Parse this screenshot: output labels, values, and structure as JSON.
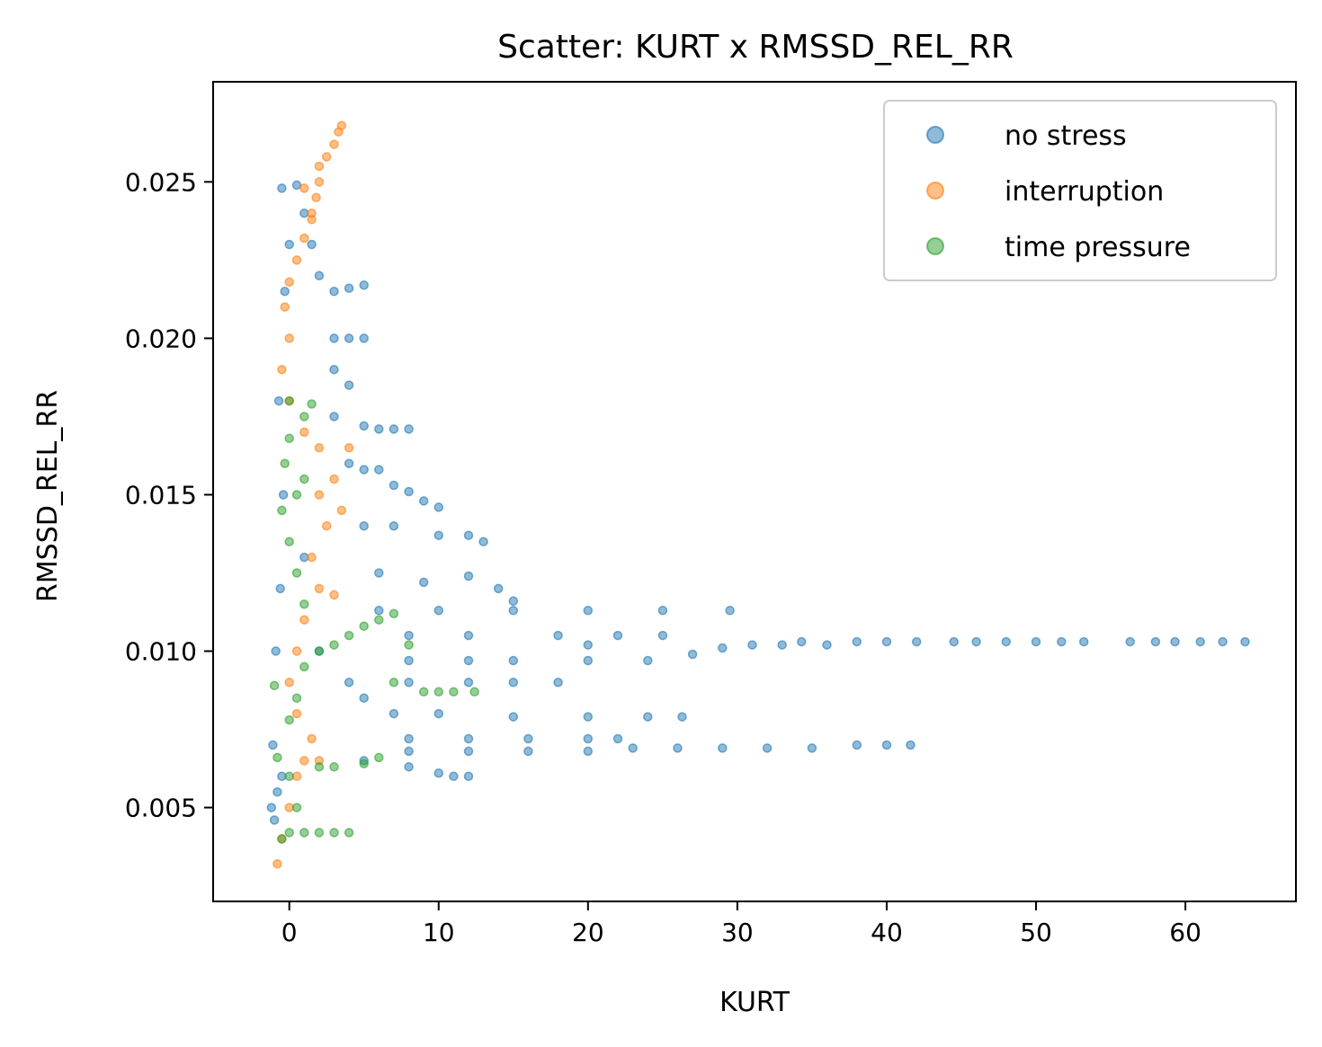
{
  "chart_data": {
    "type": "scatter",
    "title": "Scatter: KURT x RMSSD_REL_RR",
    "xlabel": "KURT",
    "ylabel": "RMSSD_REL_RR",
    "xlim": [
      -5.1,
      67.4
    ],
    "ylim": [
      0.002,
      0.0282
    ],
    "xticks": [
      0,
      10,
      20,
      30,
      40,
      50,
      60
    ],
    "xtick_labels": [
      "0",
      "10",
      "20",
      "30",
      "40",
      "50",
      "60"
    ],
    "yticks": [
      0.005,
      0.01,
      0.015,
      0.02,
      0.025
    ],
    "ytick_labels": [
      "0.005",
      "0.010",
      "0.015",
      "0.020",
      "0.025"
    ],
    "grid": false,
    "legend_position": "top-right",
    "series": [
      {
        "name": "no stress",
        "color": "#1f77b4",
        "points": [
          [
            -1.2,
            0.005
          ],
          [
            -1.0,
            0.0046
          ],
          [
            -0.8,
            0.0055
          ],
          [
            -0.5,
            0.006
          ],
          [
            -1.1,
            0.007
          ],
          [
            -0.9,
            0.01
          ],
          [
            -0.6,
            0.012
          ],
          [
            -0.4,
            0.015
          ],
          [
            -0.7,
            0.018
          ],
          [
            -0.3,
            0.0215
          ],
          [
            0.0,
            0.023
          ],
          [
            -0.5,
            0.0248
          ],
          [
            0.5,
            0.0249
          ],
          [
            1.0,
            0.024
          ],
          [
            1.5,
            0.023
          ],
          [
            2.0,
            0.022
          ],
          [
            3.0,
            0.0215
          ],
          [
            4.0,
            0.0216
          ],
          [
            5.0,
            0.0217
          ],
          [
            3.0,
            0.02
          ],
          [
            4.0,
            0.02
          ],
          [
            5.0,
            0.02
          ],
          [
            3.0,
            0.019
          ],
          [
            4.0,
            0.0185
          ],
          [
            3.0,
            0.0175
          ],
          [
            5.0,
            0.0172
          ],
          [
            6.0,
            0.0171
          ],
          [
            7.0,
            0.0171
          ],
          [
            8.0,
            0.0171
          ],
          [
            4.0,
            0.016
          ],
          [
            5.0,
            0.0158
          ],
          [
            6.0,
            0.0158
          ],
          [
            7.0,
            0.0153
          ],
          [
            8.0,
            0.0151
          ],
          [
            9.0,
            0.0148
          ],
          [
            10.0,
            0.0146
          ],
          [
            5.0,
            0.014
          ],
          [
            7.0,
            0.014
          ],
          [
            10.0,
            0.0137
          ],
          [
            12.0,
            0.0137
          ],
          [
            13.0,
            0.0135
          ],
          [
            6.0,
            0.0125
          ],
          [
            9.0,
            0.0122
          ],
          [
            12.0,
            0.0124
          ],
          [
            14.0,
            0.012
          ],
          [
            15.0,
            0.0116
          ],
          [
            6.0,
            0.0113
          ],
          [
            10.0,
            0.0113
          ],
          [
            15.0,
            0.0113
          ],
          [
            20.0,
            0.0113
          ],
          [
            25.0,
            0.0113
          ],
          [
            29.5,
            0.0113
          ],
          [
            8.0,
            0.0105
          ],
          [
            12.0,
            0.0105
          ],
          [
            18.0,
            0.0105
          ],
          [
            22.0,
            0.0105
          ],
          [
            25.0,
            0.0105
          ],
          [
            20.0,
            0.0102
          ],
          [
            8.0,
            0.0097
          ],
          [
            12.0,
            0.0097
          ],
          [
            15.0,
            0.0097
          ],
          [
            20.0,
            0.0097
          ],
          [
            24.0,
            0.0097
          ],
          [
            27.0,
            0.0099
          ],
          [
            29.0,
            0.0101
          ],
          [
            31.0,
            0.0102
          ],
          [
            33.0,
            0.0102
          ],
          [
            34.3,
            0.0103
          ],
          [
            36.0,
            0.0102
          ],
          [
            38.0,
            0.0103
          ],
          [
            40.0,
            0.0103
          ],
          [
            42.0,
            0.0103
          ],
          [
            44.5,
            0.0103
          ],
          [
            46.0,
            0.0103
          ],
          [
            48.0,
            0.0103
          ],
          [
            50.0,
            0.0103
          ],
          [
            51.7,
            0.0103
          ],
          [
            53.2,
            0.0103
          ],
          [
            56.3,
            0.0103
          ],
          [
            58.0,
            0.0103
          ],
          [
            59.3,
            0.0103
          ],
          [
            61.0,
            0.0103
          ],
          [
            62.5,
            0.0103
          ],
          [
            64.0,
            0.0103
          ],
          [
            8.0,
            0.009
          ],
          [
            12.0,
            0.009
          ],
          [
            15.0,
            0.009
          ],
          [
            18.0,
            0.009
          ],
          [
            7.0,
            0.008
          ],
          [
            10.0,
            0.008
          ],
          [
            15.0,
            0.0079
          ],
          [
            20.0,
            0.0079
          ],
          [
            24.0,
            0.0079
          ],
          [
            26.3,
            0.0079
          ],
          [
            8.0,
            0.0072
          ],
          [
            12.0,
            0.0072
          ],
          [
            16.0,
            0.0072
          ],
          [
            20.0,
            0.0072
          ],
          [
            22.0,
            0.0072
          ],
          [
            8.0,
            0.0068
          ],
          [
            12.0,
            0.0068
          ],
          [
            16.0,
            0.0068
          ],
          [
            20.0,
            0.0068
          ],
          [
            23.0,
            0.0069
          ],
          [
            26.0,
            0.0069
          ],
          [
            29.0,
            0.0069
          ],
          [
            32.0,
            0.0069
          ],
          [
            35.0,
            0.0069
          ],
          [
            38.0,
            0.007
          ],
          [
            40.0,
            0.007
          ],
          [
            41.6,
            0.007
          ],
          [
            5.0,
            0.0065
          ],
          [
            8.0,
            0.0063
          ],
          [
            10.0,
            0.0061
          ],
          [
            11.0,
            0.006
          ],
          [
            12.0,
            0.006
          ],
          [
            5.0,
            0.0085
          ],
          [
            4.0,
            0.009
          ],
          [
            2.0,
            0.01
          ],
          [
            1.0,
            0.013
          ]
        ]
      },
      {
        "name": "interruption",
        "color": "#ff7f0e",
        "points": [
          [
            -0.8,
            0.0032
          ],
          [
            -0.5,
            0.004
          ],
          [
            0.0,
            0.005
          ],
          [
            0.5,
            0.006
          ],
          [
            1.0,
            0.0065
          ],
          [
            2.0,
            0.0065
          ],
          [
            1.5,
            0.0072
          ],
          [
            0.5,
            0.008
          ],
          [
            0.0,
            0.009
          ],
          [
            0.5,
            0.01
          ],
          [
            1.0,
            0.011
          ],
          [
            2.0,
            0.012
          ],
          [
            3.0,
            0.0118
          ],
          [
            1.5,
            0.013
          ],
          [
            2.5,
            0.014
          ],
          [
            3.5,
            0.0145
          ],
          [
            2.0,
            0.015
          ],
          [
            3.0,
            0.0155
          ],
          [
            2.0,
            0.0165
          ],
          [
            4.0,
            0.0165
          ],
          [
            1.0,
            0.017
          ],
          [
            0.0,
            0.018
          ],
          [
            -0.5,
            0.019
          ],
          [
            0.0,
            0.02
          ],
          [
            -0.3,
            0.021
          ],
          [
            0.0,
            0.0218
          ],
          [
            0.5,
            0.0225
          ],
          [
            1.0,
            0.0232
          ],
          [
            1.5,
            0.024
          ],
          [
            1.8,
            0.0245
          ],
          [
            1.0,
            0.0248
          ],
          [
            2.0,
            0.0255
          ],
          [
            2.5,
            0.0258
          ],
          [
            3.0,
            0.0262
          ],
          [
            3.3,
            0.0266
          ],
          [
            3.5,
            0.0268
          ],
          [
            2.0,
            0.025
          ],
          [
            1.5,
            0.0238
          ]
        ]
      },
      {
        "name": "time pressure",
        "color": "#2ca02c",
        "points": [
          [
            -0.5,
            0.004
          ],
          [
            0.0,
            0.0042
          ],
          [
            1.0,
            0.0042
          ],
          [
            2.0,
            0.0042
          ],
          [
            3.0,
            0.0042
          ],
          [
            4.0,
            0.0042
          ],
          [
            0.5,
            0.005
          ],
          [
            0.0,
            0.006
          ],
          [
            2.0,
            0.0063
          ],
          [
            3.0,
            0.0063
          ],
          [
            5.0,
            0.0064
          ],
          [
            6.0,
            0.0066
          ],
          [
            -0.8,
            0.0066
          ],
          [
            -1.0,
            0.0089
          ],
          [
            0.0,
            0.0078
          ],
          [
            0.5,
            0.0085
          ],
          [
            1.0,
            0.0095
          ],
          [
            2.0,
            0.01
          ],
          [
            3.0,
            0.0102
          ],
          [
            4.0,
            0.0105
          ],
          [
            5.0,
            0.0108
          ],
          [
            6.0,
            0.011
          ],
          [
            7.0,
            0.0112
          ],
          [
            8.0,
            0.0102
          ],
          [
            7.0,
            0.009
          ],
          [
            9.0,
            0.0087
          ],
          [
            10.0,
            0.0087
          ],
          [
            11.0,
            0.0087
          ],
          [
            12.4,
            0.0087
          ],
          [
            1.0,
            0.0115
          ],
          [
            0.5,
            0.0125
          ],
          [
            0.0,
            0.0135
          ],
          [
            -0.5,
            0.0145
          ],
          [
            0.5,
            0.015
          ],
          [
            1.0,
            0.0155
          ],
          [
            -0.3,
            0.016
          ],
          [
            0.0,
            0.0168
          ],
          [
            1.0,
            0.0175
          ],
          [
            1.5,
            0.0179
          ],
          [
            0.0,
            0.018
          ]
        ]
      }
    ]
  }
}
